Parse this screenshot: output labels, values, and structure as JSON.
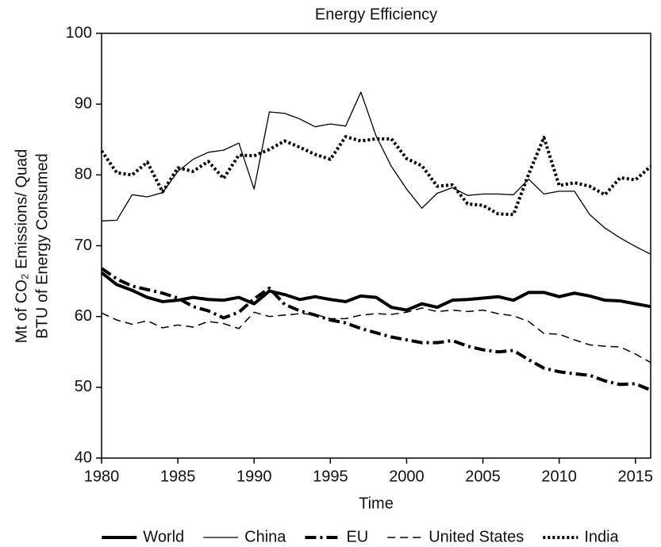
{
  "chart_data": {
    "type": "line",
    "title": "Energy Efficiency",
    "xlabel": "Time",
    "ylabel": [
      "Mt of CO₂ Emissions/ Quad",
      "BTU of Energy Consumed"
    ],
    "x": [
      1980,
      1981,
      1982,
      1983,
      1984,
      1985,
      1986,
      1987,
      1988,
      1989,
      1990,
      1991,
      1992,
      1993,
      1994,
      1995,
      1996,
      1997,
      1998,
      1999,
      2000,
      2001,
      2002,
      2003,
      2004,
      2005,
      2006,
      2007,
      2008,
      2009,
      2010,
      2011,
      2012,
      2013,
      2014,
      2015,
      2016
    ],
    "xlim": [
      1980,
      2016
    ],
    "xticks": [
      1980,
      1985,
      1990,
      1995,
      2000,
      2005,
      2010,
      2015
    ],
    "ylim": [
      40,
      100
    ],
    "yticks": [
      40,
      50,
      60,
      70,
      80,
      90,
      100
    ],
    "legend": "bottom",
    "series": [
      {
        "name": "World",
        "color": "#000000",
        "linestyle": "thick-solid",
        "values": [
          66.2,
          64.5,
          63.7,
          62.7,
          62.1,
          62.3,
          62.7,
          62.4,
          62.3,
          62.7,
          61.8,
          63.6,
          63.1,
          62.4,
          62.8,
          62.4,
          62.1,
          62.9,
          62.7,
          61.3,
          60.9,
          61.8,
          61.3,
          62.3,
          62.4,
          62.6,
          62.8,
          62.3,
          63.4,
          63.4,
          62.8,
          63.3,
          62.9,
          62.3,
          62.2,
          61.8,
          61.4
        ]
      },
      {
        "name": "China",
        "color": "#000000",
        "linestyle": "thin-solid",
        "values": [
          73.5,
          73.6,
          77.2,
          76.9,
          77.5,
          80.5,
          82.2,
          83.2,
          83.5,
          84.5,
          78.0,
          88.9,
          88.7,
          87.9,
          86.8,
          87.2,
          86.9,
          91.7,
          85.5,
          81.2,
          78.0,
          75.3,
          77.4,
          78.2,
          77.1,
          77.3,
          77.3,
          77.2,
          79.4,
          77.3,
          77.7,
          77.7,
          74.4,
          72.5,
          71.1,
          69.9,
          68.8
        ]
      },
      {
        "name": "EU",
        "color": "#000000",
        "linestyle": "thick-dashdot",
        "values": [
          66.8,
          65.3,
          64.3,
          63.8,
          63.3,
          62.6,
          61.4,
          60.8,
          59.8,
          60.6,
          62.5,
          64.0,
          61.7,
          60.8,
          60.2,
          59.5,
          59.1,
          58.3,
          57.7,
          57.1,
          56.7,
          56.3,
          56.3,
          56.6,
          55.8,
          55.3,
          55.0,
          55.2,
          53.9,
          52.7,
          52.2,
          51.9,
          51.7,
          50.9,
          50.4,
          50.5,
          49.6
        ]
      },
      {
        "name": "United States",
        "color": "#000000",
        "linestyle": "dashed",
        "values": [
          60.5,
          59.5,
          58.9,
          59.4,
          58.4,
          58.8,
          58.5,
          59.3,
          59.0,
          58.3,
          60.6,
          60.0,
          60.2,
          60.4,
          60.3,
          59.7,
          59.7,
          60.2,
          60.4,
          60.3,
          60.6,
          61.2,
          60.7,
          60.9,
          60.7,
          60.9,
          60.4,
          60.1,
          59.3,
          57.6,
          57.5,
          56.7,
          56.0,
          55.8,
          55.7,
          54.7,
          53.5
        ]
      },
      {
        "name": "India",
        "color": "#000000",
        "linestyle": "thick-dotted",
        "values": [
          83.4,
          80.3,
          80.0,
          81.8,
          77.6,
          81.0,
          80.5,
          81.9,
          79.5,
          82.8,
          82.7,
          83.6,
          84.8,
          83.9,
          82.9,
          82.2,
          85.4,
          84.8,
          85.1,
          85.1,
          82.3,
          81.3,
          78.4,
          78.6,
          75.9,
          75.7,
          74.5,
          74.4,
          80.1,
          85.3,
          78.5,
          78.9,
          78.4,
          77.2,
          79.6,
          79.3,
          81.2
        ]
      }
    ]
  }
}
